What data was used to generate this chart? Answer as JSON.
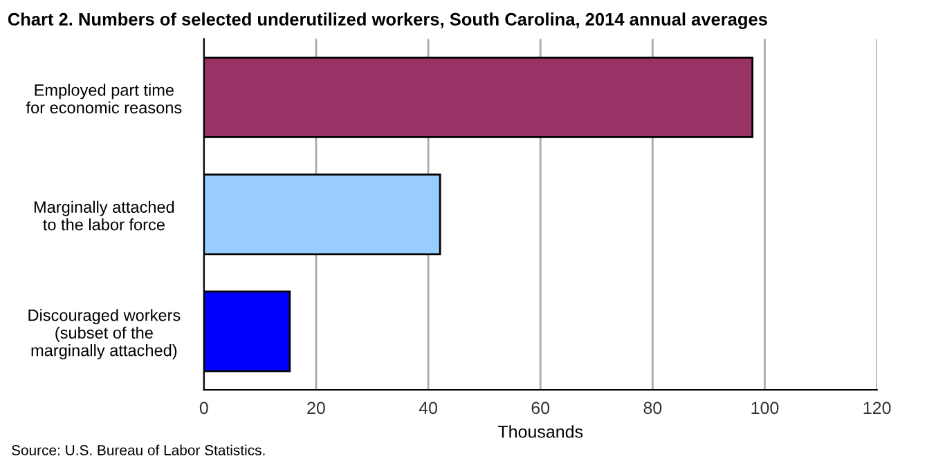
{
  "chart_data": {
    "type": "bar",
    "orientation": "horizontal",
    "title": "Chart 2. Numbers of selected underutilized workers, South Carolina, 2014 annual averages",
    "xlabel": "Thousands",
    "categories": [
      "Employed part time\nfor economic reasons",
      "Marginally attached\nto the labor force",
      "Discouraged workers\n(subset of the\nmarginally attached)"
    ],
    "values": [
      97.8,
      42.1,
      15.3
    ],
    "colors": [
      "#993366",
      "#99ccff",
      "#0000ff"
    ],
    "xlim": [
      0,
      120
    ],
    "xticks": [
      0,
      20,
      40,
      60,
      80,
      100,
      120
    ],
    "grid": "x",
    "legend": false,
    "annotations": [
      "Source: U.S. Bureau of Labor Statistics."
    ]
  }
}
